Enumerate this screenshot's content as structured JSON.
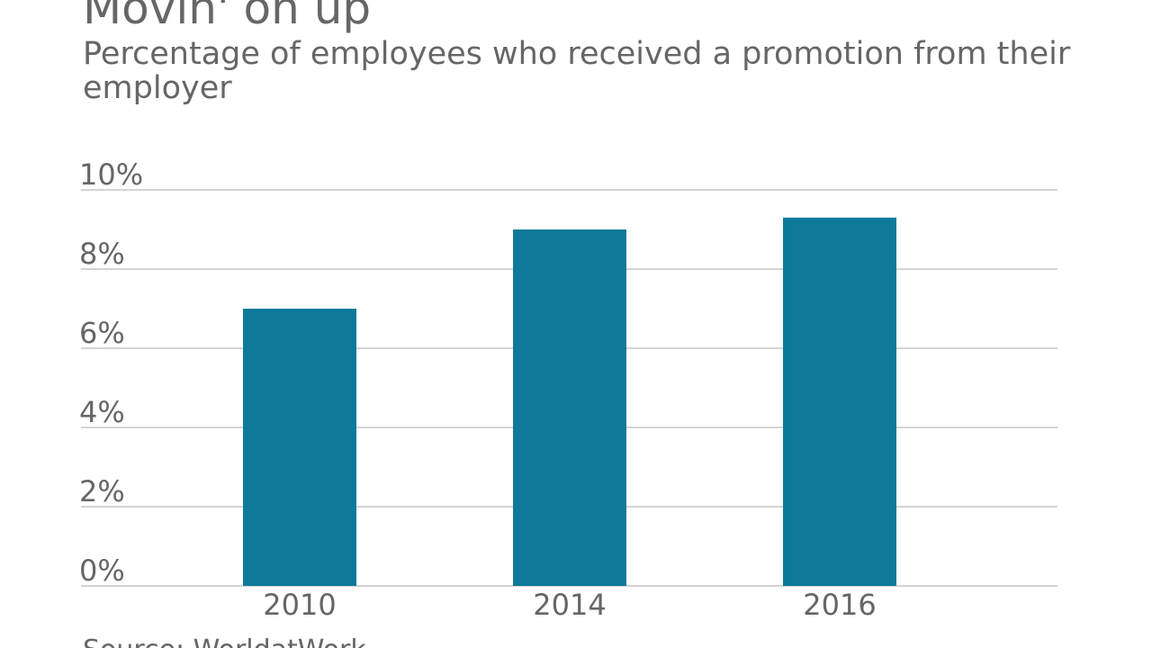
{
  "chart_data": {
    "type": "bar",
    "title": "Movin' on up",
    "subtitle": [
      "Percentage of employees who received a promotion from their",
      "employer"
    ],
    "source": "Source: WorldatWork",
    "categories": [
      "2010",
      "2014",
      "2016"
    ],
    "values": [
      7,
      9,
      9.3
    ],
    "color": "#0d7a99",
    "ylim": [
      0,
      10
    ],
    "yticks": [
      {
        "value": 0,
        "label": "0%"
      },
      {
        "value": 2,
        "label": "2%"
      },
      {
        "value": 4,
        "label": "4%"
      },
      {
        "value": 6,
        "label": "6%"
      },
      {
        "value": 8,
        "label": "8%"
      },
      {
        "value": 10,
        "label": "10%"
      }
    ],
    "grid": true
  }
}
